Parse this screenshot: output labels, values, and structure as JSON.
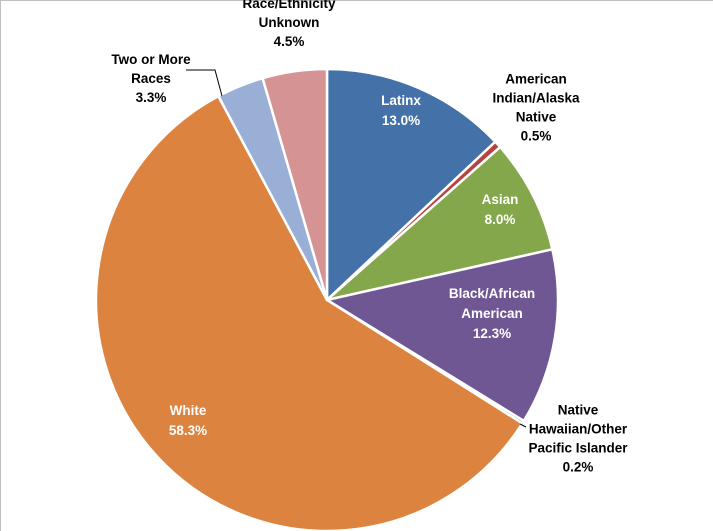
{
  "chart_data": {
    "type": "pie",
    "title": "",
    "slices": [
      {
        "name": "Latinx",
        "lines": [
          "Latinx",
          "13.0%"
        ],
        "value": 13.0,
        "color": "#4472a8",
        "labelColor": "#ffffff"
      },
      {
        "name": "American Indian/Alaska Native",
        "lines": [
          "American",
          "Indian/Alaska",
          "Native",
          "0.5%"
        ],
        "value": 0.5,
        "color": "#b5443f",
        "labelColor": "#000000"
      },
      {
        "name": "Asian",
        "lines": [
          "Asian",
          "8.0%"
        ],
        "value": 8.0,
        "color": "#84a74c",
        "labelColor": "#ffffff"
      },
      {
        "name": "Black/African American",
        "lines": [
          "Black/African",
          "American",
          "12.3%"
        ],
        "value": 12.3,
        "color": "#6f5793",
        "labelColor": "#ffffff"
      },
      {
        "name": "Native Hawaiian/Other Pacific Islander",
        "lines": [
          "Native",
          "Hawaiian/Other",
          "Pacific Islander",
          "0.2%"
        ],
        "value": 0.2,
        "color": "#3f97b6",
        "labelColor": "#000000"
      },
      {
        "name": "White",
        "lines": [
          "White",
          "58.3%"
        ],
        "value": 58.3,
        "color": "#dc833f",
        "labelColor": "#ffffff"
      },
      {
        "name": "Two or More Races",
        "lines": [
          "Two or More",
          "Races",
          "3.3%"
        ],
        "value": 3.3,
        "color": "#9aafd6",
        "labelColor": "#000000"
      },
      {
        "name": "Race/Ethnicity Unknown",
        "lines": [
          "Race/Ethnicity",
          "Unknown",
          "4.5%"
        ],
        "value": 4.5,
        "color": "#d59393",
        "labelColor": "#000000"
      }
    ]
  }
}
